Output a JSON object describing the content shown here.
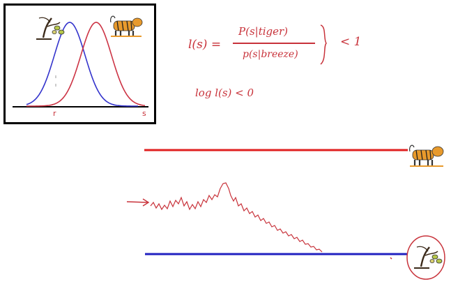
{
  "inset": {
    "left_axis_label": "r",
    "right_axis_label": "s",
    "curves": [
      {
        "name": "breeze",
        "color": "#3333cc",
        "peak_icon": "tree-icon"
      },
      {
        "name": "tiger",
        "color": "#cc3344",
        "peak_icon": "tiger-icon"
      }
    ]
  },
  "formula": {
    "lhs": "l(s) =",
    "numerator": "P(s|tiger)",
    "denominator": "p(s|breeze)",
    "relation": "< 1",
    "log_line": "log l(s)  <  0"
  },
  "signals": {
    "tiger_line_color": "#e02020",
    "breeze_line_color": "#2020c0",
    "tiger_icon": "tiger-icon",
    "breeze_icon": "tree-icon",
    "input_arrow_icon": "arrow-right-icon"
  },
  "colors": {
    "ink_red": "#c8323a",
    "ink_blue": "#3030b0"
  }
}
